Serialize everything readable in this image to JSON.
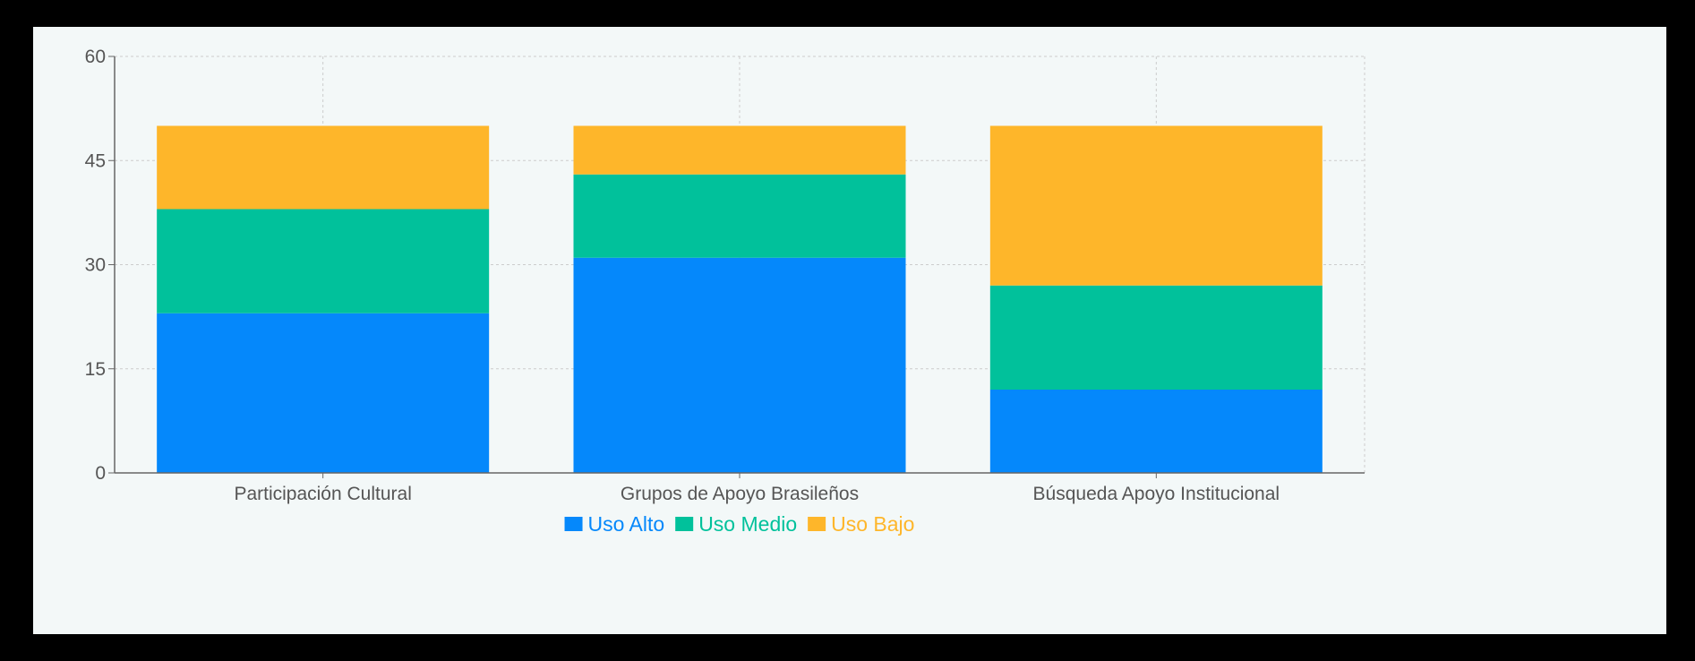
{
  "chart_data": {
    "type": "bar",
    "stacked": true,
    "categories": [
      "Participación Cultural",
      "Grupos de Apoyo Brasileños",
      "Búsqueda Apoyo Institucional"
    ],
    "series": [
      {
        "name": "Uso Alto",
        "values": [
          23,
          31,
          12
        ],
        "color": "#0588fb"
      },
      {
        "name": "Uso Medio",
        "values": [
          15,
          12,
          15
        ],
        "color": "#01c19b"
      },
      {
        "name": "Uso Bajo",
        "values": [
          12,
          7,
          23
        ],
        "color": "#feb62a"
      }
    ],
    "title": "",
    "xlabel": "",
    "ylabel": "",
    "ylim": [
      0,
      60
    ],
    "yticks": [
      0,
      15,
      30,
      45,
      60
    ],
    "grid": true,
    "legend": "bottom-center",
    "colors": {
      "background": "#f3f8f8",
      "frame": "#000000",
      "grid": "#cccccc",
      "axis": "#666666",
      "tick_text": "#555555"
    }
  }
}
